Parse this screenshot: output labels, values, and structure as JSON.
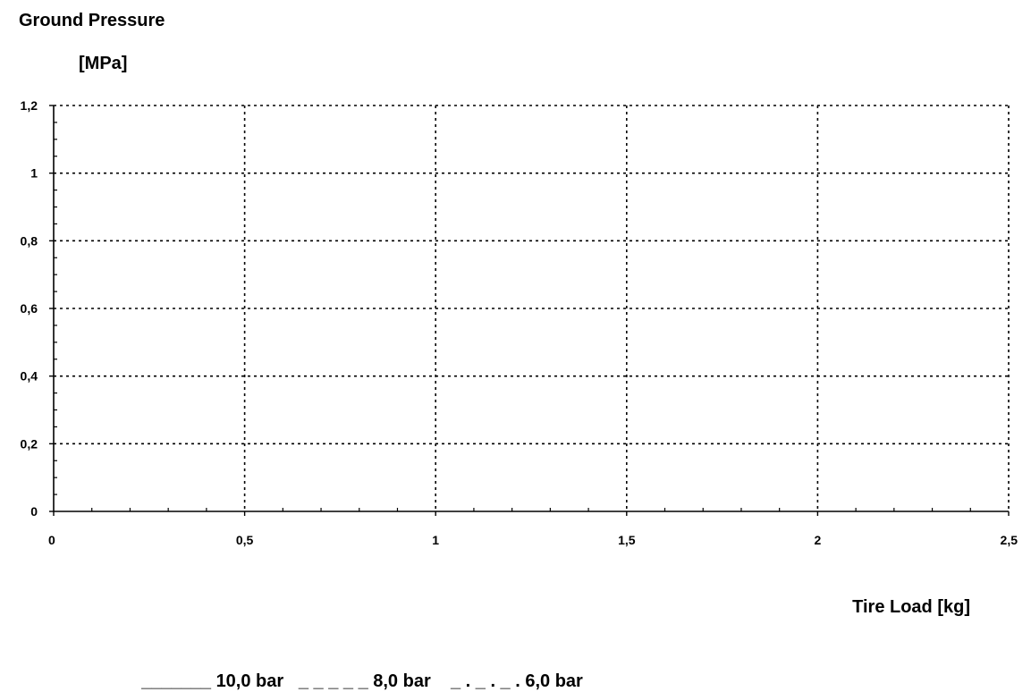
{
  "chart_data": {
    "type": "line",
    "title": "",
    "ylabel": "Ground Pressure",
    "yunit": "[MPa]",
    "xlabel": "Tire Load [kg]",
    "xlim": [
      0,
      2.5
    ],
    "ylim": [
      0,
      1.2
    ],
    "x_ticks": [
      "0",
      "0,5",
      "1",
      "1,5",
      "2",
      "2,5"
    ],
    "x_tick_values": [
      0,
      0.5,
      1,
      1.5,
      2,
      2.5
    ],
    "y_ticks": [
      "0",
      "0,2",
      "0,4",
      "0,6",
      "0,8",
      "1",
      "1,2"
    ],
    "y_tick_values": [
      0,
      0.2,
      0.4,
      0.6,
      0.8,
      1.0,
      1.2
    ],
    "x_minor_per_major": 5,
    "y_minor_per_major": 4,
    "grid": true,
    "grid_style": "dotted",
    "legend_placement": "bottom",
    "series": [
      {
        "name": "10,0 bar",
        "style": "solid",
        "values": []
      },
      {
        "name": "8,0 bar",
        "style": "dashed",
        "values": []
      },
      {
        "name": "6,0 bar",
        "style": "dash-dot",
        "values": []
      }
    ],
    "legend_text": [
      {
        "marker": "_______",
        "label": "10,0 bar"
      },
      {
        "marker": "_ _ _ _ _",
        "label": "8,0 bar"
      },
      {
        "marker": "_ . _ . _ .",
        "label": "6,0 bar"
      }
    ]
  }
}
